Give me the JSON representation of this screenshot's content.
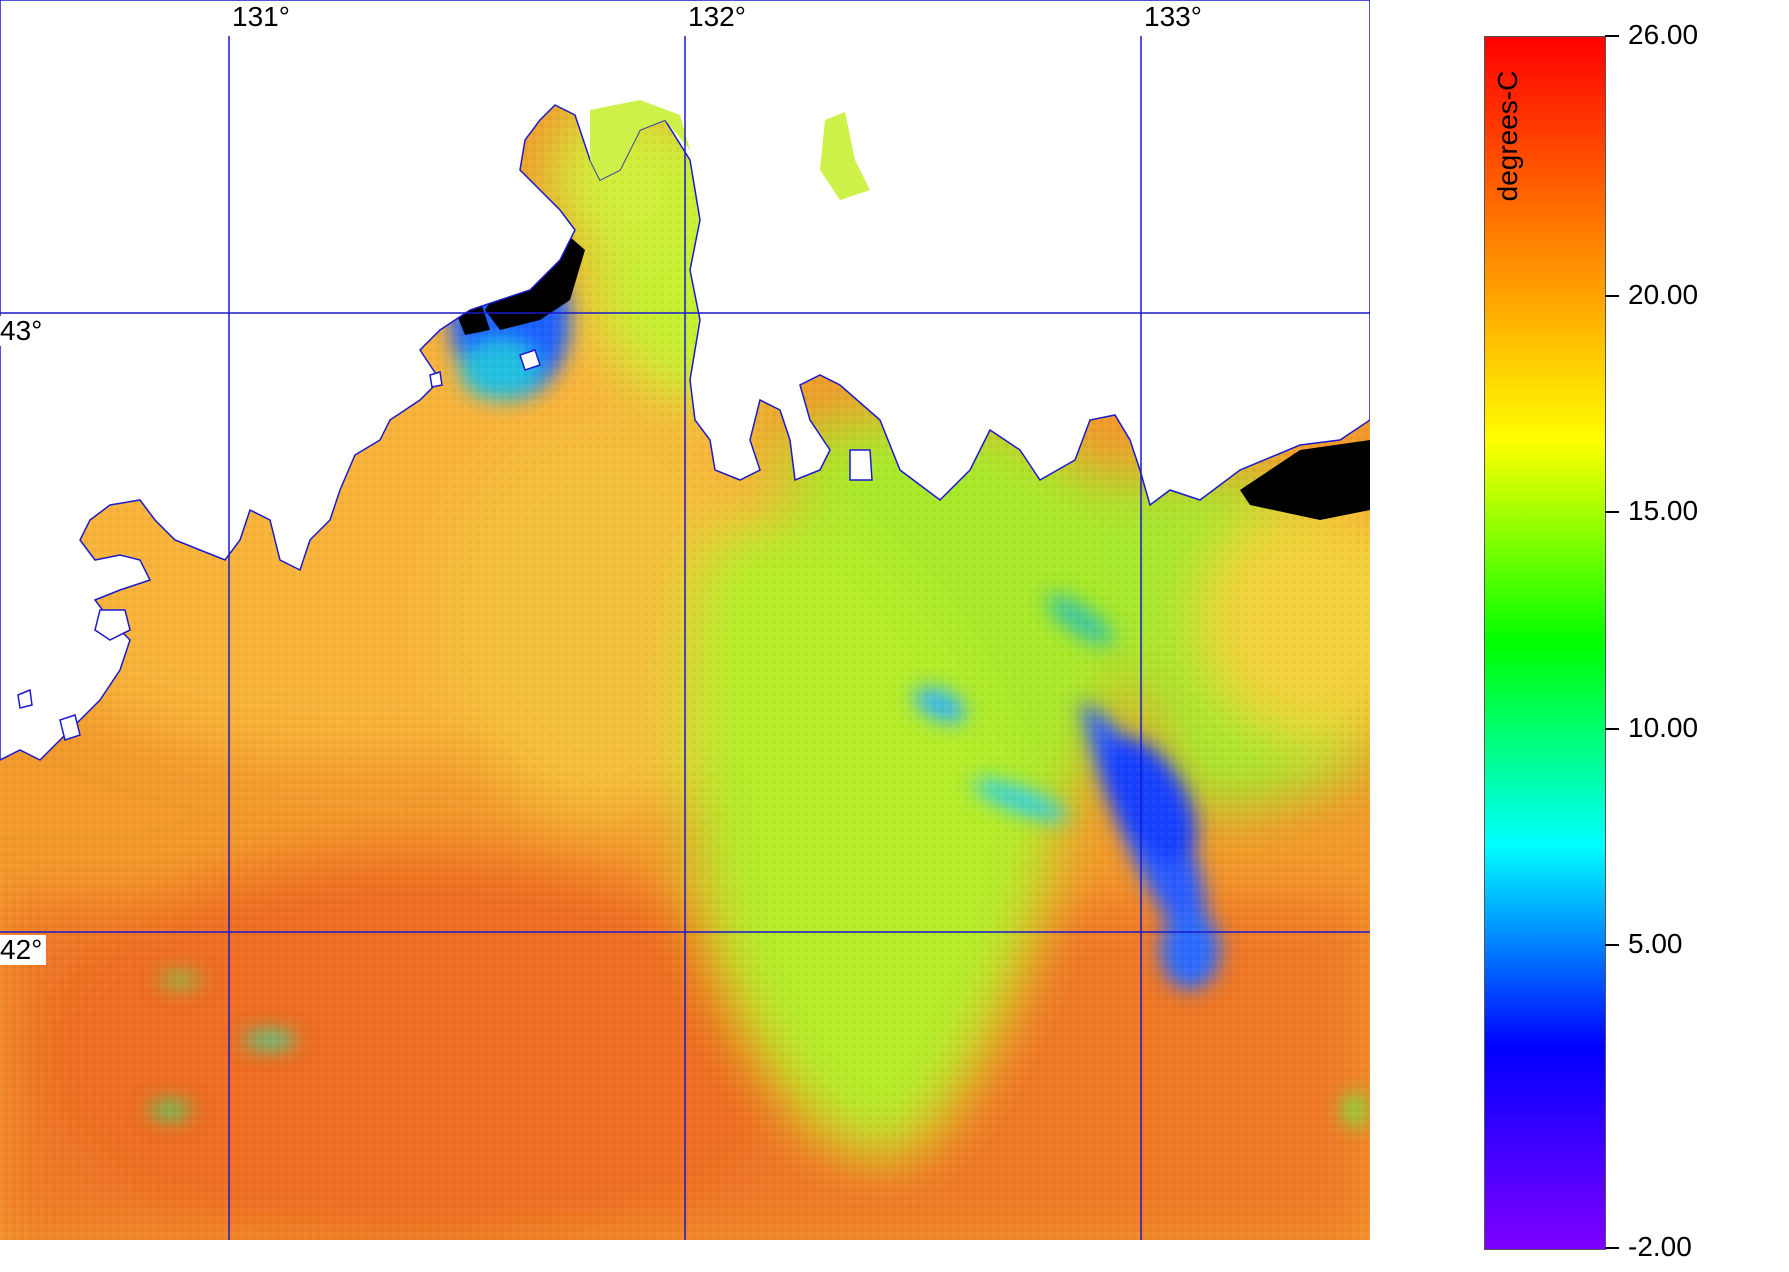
{
  "map": {
    "longitude_labels": [
      "131°",
      "132°",
      "133°"
    ],
    "latitude_labels": [
      "43°",
      "42°"
    ],
    "gridline_color": "#1a1acc",
    "coastline_color": "#1a1acc",
    "land_color": "#ffffff",
    "cloud_mask_color": "#000000"
  },
  "colorbar": {
    "unit": "degrees-C",
    "min": -2.0,
    "max": 26.0,
    "tick_labels": [
      "26.00",
      "20.00",
      "15.00",
      "10.00",
      "5.00",
      "-2.00"
    ],
    "tick_values": [
      26,
      20,
      15,
      10,
      5,
      -2
    ],
    "colors": [
      "#7f00ff",
      "#0000ff",
      "#00ffff",
      "#00ff00",
      "#ffff00",
      "#ff8000",
      "#ff0000"
    ]
  }
}
